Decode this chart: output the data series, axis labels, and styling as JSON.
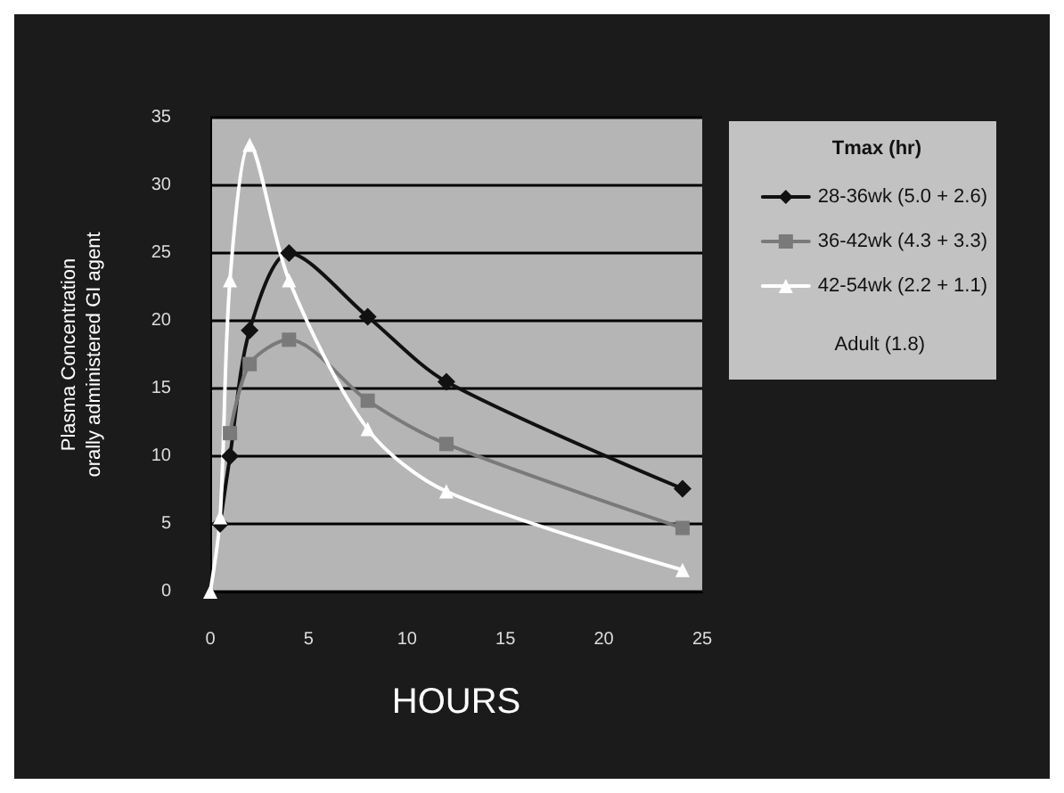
{
  "chart_data": {
    "type": "line",
    "xlabel": "HOURS",
    "ylabel": "Plasma Concentration\norally administered GI agent",
    "legend_title": "Tmax (hr)",
    "annotations": [
      "Adult (1.8)"
    ],
    "xlim": [
      0,
      25
    ],
    "xticks": [
      0,
      5,
      10,
      15,
      20,
      25
    ],
    "ylim": [
      0,
      35
    ],
    "yticks": [
      0,
      5,
      10,
      15,
      20,
      25,
      30,
      35
    ],
    "grid": "y",
    "legend": "right",
    "series": [
      {
        "name": "28-36wk (5.0 + 2.6)",
        "color": "#111111",
        "marker": "diamond",
        "x": [
          0.5,
          1,
          2,
          4,
          8,
          12,
          24
        ],
        "values": [
          5,
          10,
          19.3,
          25,
          20.3,
          15.5,
          7.6
        ]
      },
      {
        "name": "36-42wk (4.3 + 3.3)",
        "color": "#7a7a7a",
        "marker": "square",
        "x": [
          1,
          2,
          4,
          8,
          12,
          24
        ],
        "values": [
          11.7,
          16.8,
          18.6,
          14.1,
          10.9,
          4.7
        ]
      },
      {
        "name": "42-54wk (2.2 + 1.1)",
        "color": "#ffffff",
        "marker": "triangle",
        "x": [
          0,
          0.5,
          1,
          2,
          4,
          8,
          12,
          24
        ],
        "values": [
          0,
          5.5,
          23,
          33,
          23,
          12,
          7.4,
          1.6
        ]
      }
    ]
  }
}
